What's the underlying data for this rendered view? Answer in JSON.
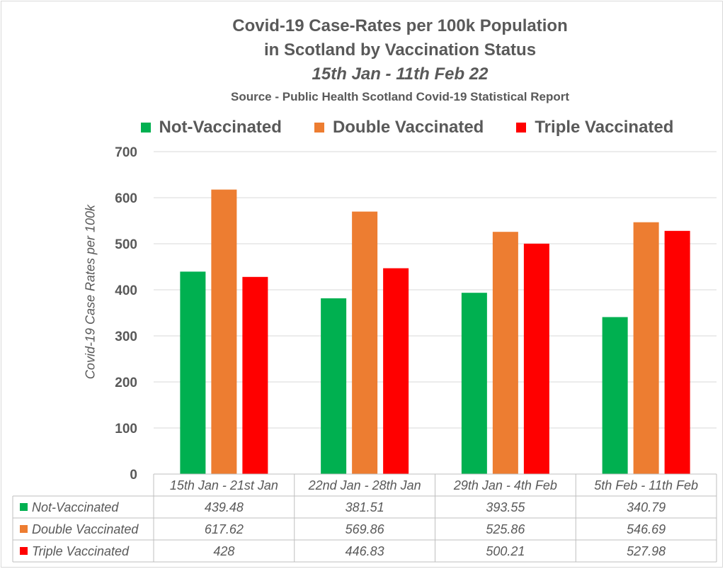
{
  "chart_data": {
    "type": "bar",
    "title": "Covid-19 Case-Rates per 100k Population",
    "title_line2": "in Scotland by Vaccination Status",
    "subtitle": "15th Jan - 11th Feb 22",
    "source": "Source - Public Health Scotland Covid-19 Statistical Report",
    "ylabel": "Covid-19 Case Rates per 100k",
    "xlabel": "",
    "ylim": [
      0,
      700
    ],
    "yticks": [
      0,
      100,
      200,
      300,
      400,
      500,
      600,
      700
    ],
    "grid": true,
    "legend_position": "top",
    "data_table": true,
    "categories": [
      "15th Jan - 21st Jan",
      "22nd Jan - 28th Jan",
      "29th Jan - 4th Feb",
      "5th Feb - 11th Feb"
    ],
    "series": [
      {
        "name": "Not-Vaccinated",
        "color": "#00b050",
        "values": [
          439.48,
          381.51,
          393.55,
          340.79
        ]
      },
      {
        "name": "Double Vaccinated",
        "color": "#ed7d31",
        "values": [
          617.62,
          569.86,
          525.86,
          546.69
        ]
      },
      {
        "name": "Triple Vaccinated",
        "color": "#ff0000",
        "values": [
          428,
          446.83,
          500.21,
          527.98
        ]
      }
    ]
  }
}
